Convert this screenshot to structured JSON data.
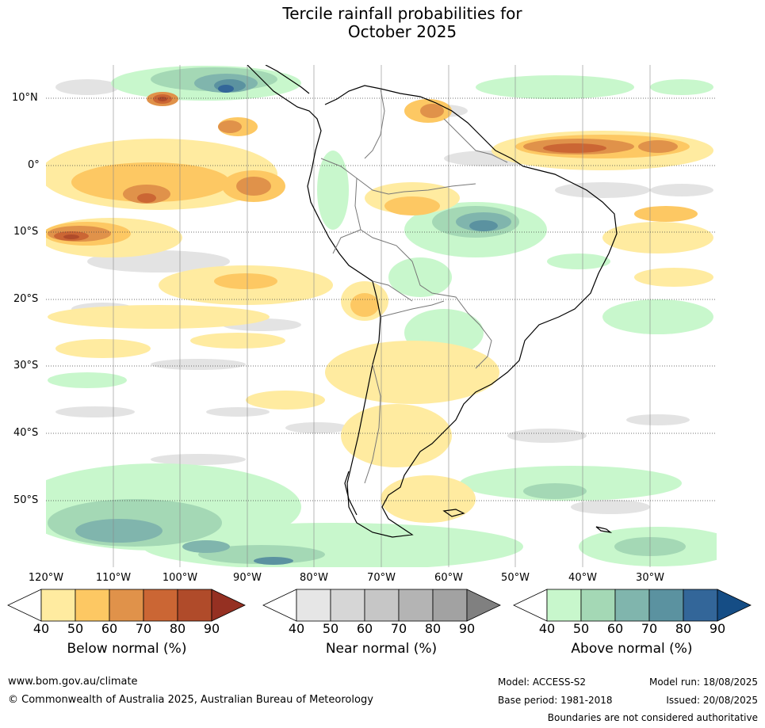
{
  "title_line1": "Tercile rainfall probabilities for",
  "title_line2": "October 2025",
  "map": {
    "lat_labels": [
      "10°N",
      "0°",
      "10°S",
      "20°S",
      "30°S",
      "40°S",
      "50°S"
    ],
    "lon_labels": [
      "120°W",
      "110°W",
      "100°W",
      "90°W",
      "80°W",
      "70°W",
      "60°W",
      "50°W",
      "40°W",
      "30°W"
    ]
  },
  "colorbars": [
    {
      "label": "Below normal (%)",
      "ticks": [
        "40",
        "50",
        "60",
        "70",
        "80",
        "90"
      ],
      "colors": [
        "#ffffff",
        "#ffeba0",
        "#fdc863",
        "#e0924a",
        "#cb6634",
        "#b04b2a",
        "#953022"
      ]
    },
    {
      "label": "Near normal (%)",
      "ticks": [
        "40",
        "50",
        "60",
        "70",
        "80",
        "90"
      ],
      "colors": [
        "#ffffff",
        "#e6e6e6",
        "#d6d6d6",
        "#c6c6c6",
        "#b4b4b4",
        "#a2a2a2",
        "#808080"
      ]
    },
    {
      "label": "Above normal (%)",
      "ticks": [
        "40",
        "50",
        "60",
        "70",
        "80",
        "90"
      ],
      "colors": [
        "#ffffff",
        "#c8f7cc",
        "#a4d8b5",
        "#80b5ad",
        "#5b92a0",
        "#336699",
        "#154d85"
      ]
    }
  ],
  "footer": {
    "website": "www.bom.gov.au/climate",
    "copyright": "© Commonwealth of Australia 2025, Australian Bureau of Meteorology",
    "model": "Model: ACCESS-S2",
    "model_run": "Model run: 18/08/2025",
    "base_period": "Base period: 1981-2018",
    "issued": "Issued: 20/08/2025",
    "disclaimer": "Boundaries are not considered authoritative"
  }
}
